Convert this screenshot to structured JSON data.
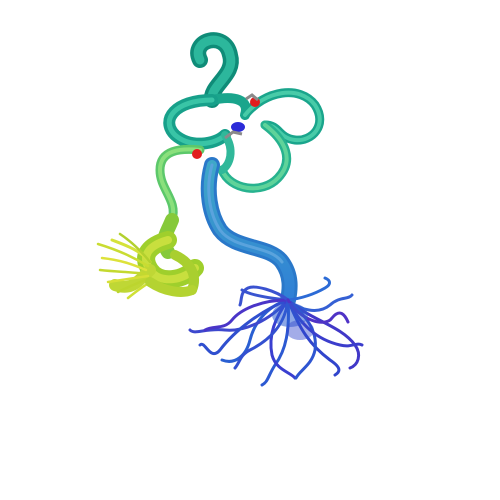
{
  "scene": {
    "subject": "protein-ribbon-ensemble",
    "background_color": "#ffffff",
    "colors": {
      "teal": "#1aa58c",
      "teal_dark": "#0f8c78",
      "cyan": "#2cb7a8",
      "mint": "#5fd39a",
      "green": "#7ad04a",
      "yellow_green": "#b8d630",
      "yellow": "#dde23a",
      "blue": "#2f7fd6",
      "blue_dark": "#2a5fd2",
      "indigo": "#3a3fd0",
      "violet": "#4a35c8",
      "oxygen_red": "#e21d1d",
      "nitrogen_blue": "#2b2bd8"
    }
  }
}
